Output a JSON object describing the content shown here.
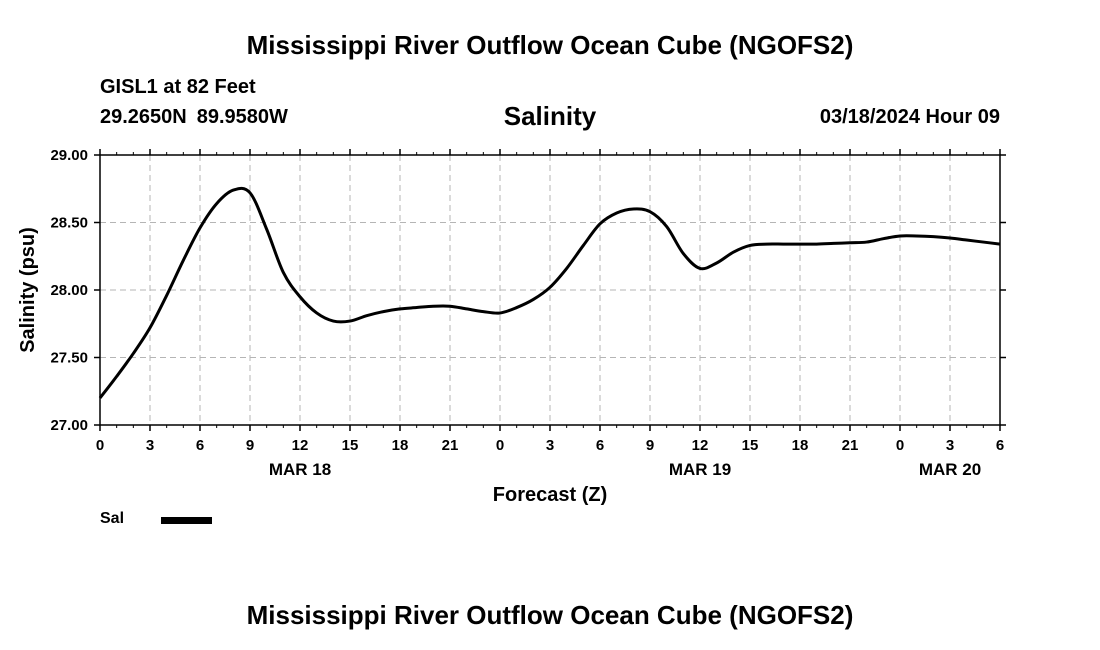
{
  "header": {
    "title": "Mississippi River Outflow Ocean Cube (NGOFS2)",
    "station": "GISL1 at 82 Feet",
    "latitude": "29.2650N",
    "longitude": "89.9580W",
    "datetime": "03/18/2024 Hour 09"
  },
  "footer": {
    "title": "Mississippi River Outflow Ocean Cube (NGOFS2)"
  },
  "legend": {
    "label": "Sal",
    "color": "#000000"
  },
  "chart_data": {
    "type": "line",
    "title": "Salinity",
    "xlabel": "Forecast (Z)",
    "ylabel": "Salinity (psu)",
    "xlim": [
      0,
      54
    ],
    "ylim": [
      27.0,
      29.0
    ],
    "grid": true,
    "x_tick_values": [
      0,
      3,
      6,
      9,
      12,
      15,
      18,
      21,
      24,
      27,
      30,
      33,
      36,
      39,
      42,
      45,
      48,
      51,
      54
    ],
    "x_tick_labels": [
      "0",
      "3",
      "6",
      "9",
      "12",
      "15",
      "18",
      "21",
      "0",
      "3",
      "6",
      "9",
      "12",
      "15",
      "18",
      "21",
      "0",
      "3",
      "6"
    ],
    "y_tick_values": [
      27.0,
      27.5,
      28.0,
      28.5,
      29.0
    ],
    "y_tick_labels": [
      "27.00",
      "27.50",
      "28.00",
      "28.50",
      "29.00"
    ],
    "date_labels": [
      {
        "x": 12,
        "label": "MAR 18"
      },
      {
        "x": 36,
        "label": "MAR 19"
      },
      {
        "x": 51,
        "label": "MAR 20"
      }
    ],
    "series": [
      {
        "name": "Sal",
        "color": "#000000",
        "x": [
          0,
          1,
          2,
          3,
          4,
          5,
          6,
          7,
          8,
          9,
          10,
          11,
          12,
          13,
          14,
          15,
          16,
          17,
          18,
          19,
          20,
          21,
          22,
          23,
          24,
          25,
          26,
          27,
          28,
          29,
          30,
          31,
          32,
          33,
          34,
          35,
          36,
          37,
          38,
          39,
          40,
          41,
          42,
          43,
          44,
          45,
          46,
          47,
          48,
          49,
          50,
          51,
          52,
          53,
          54
        ],
        "values": [
          27.2,
          27.36,
          27.53,
          27.72,
          27.96,
          28.22,
          28.46,
          28.64,
          28.74,
          28.72,
          28.45,
          28.13,
          27.95,
          27.83,
          27.77,
          27.77,
          27.81,
          27.84,
          27.86,
          27.87,
          27.88,
          27.88,
          27.86,
          27.84,
          27.83,
          27.87,
          27.93,
          28.02,
          28.16,
          28.33,
          28.49,
          28.57,
          28.6,
          28.58,
          28.47,
          28.27,
          28.16,
          28.2,
          28.28,
          28.33,
          28.34,
          28.34,
          28.34,
          28.34,
          28.345,
          28.35,
          28.355,
          28.38,
          28.4,
          28.4,
          28.395,
          28.385,
          28.37,
          28.355,
          28.34
        ]
      }
    ]
  }
}
